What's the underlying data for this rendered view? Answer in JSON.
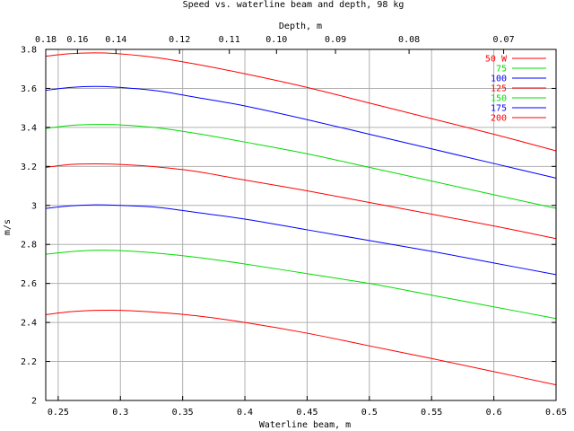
{
  "chart_data": {
    "type": "line",
    "title": "Speed  vs. waterline beam and depth, 98 kg",
    "xlabel": "Waterline beam, m",
    "ylabel": "m/s",
    "x2label": "Depth, m",
    "xlim": [
      0.24,
      0.65
    ],
    "ylim": [
      2.0,
      3.8
    ],
    "xticks": [
      0.25,
      0.3,
      0.35,
      0.4,
      0.45,
      0.5,
      0.55,
      0.6,
      0.65
    ],
    "xtick_labels": [
      "0.25",
      "0.3",
      "0.35",
      "0.4",
      "0.45",
      "0.5",
      "0.55",
      "0.6",
      "0.65"
    ],
    "yticks": [
      2.0,
      2.2,
      2.4,
      2.6,
      2.8,
      3.0,
      3.2,
      3.4,
      3.6,
      3.8
    ],
    "ytick_labels": [
      "2",
      "2.2",
      "2.4",
      "2.6",
      "2.8",
      "3",
      "3.2",
      "3.4",
      "3.6",
      "3.8"
    ],
    "x2ticks": [
      {
        "beam": 0.24,
        "label": "0.18"
      },
      {
        "beam": 0.2655,
        "label": "0.16"
      },
      {
        "beam": 0.2964,
        "label": "0.14"
      },
      {
        "beam": 0.3475,
        "label": "0.12"
      },
      {
        "beam": 0.3875,
        "label": "0.11"
      },
      {
        "beam": 0.4254,
        "label": "0.10"
      },
      {
        "beam": 0.4728,
        "label": "0.09"
      },
      {
        "beam": 0.5319,
        "label": "0.08"
      },
      {
        "beam": 0.6079,
        "label": "0.07"
      }
    ],
    "grid": true,
    "legend_position": "top-right",
    "x": [
      0.24,
      0.26,
      0.28,
      0.3,
      0.33,
      0.36,
      0.4,
      0.45,
      0.5,
      0.55,
      0.6,
      0.65
    ],
    "series": [
      {
        "name": "50 W",
        "color": "#ff0000",
        "values": [
          2.44,
          2.455,
          2.462,
          2.462,
          2.452,
          2.435,
          2.4,
          2.345,
          2.28,
          2.215,
          2.148,
          2.08
        ]
      },
      {
        "name": "75",
        "color": "#00dd00",
        "values": [
          2.75,
          2.763,
          2.77,
          2.768,
          2.755,
          2.735,
          2.7,
          2.65,
          2.6,
          2.54,
          2.48,
          2.42
        ]
      },
      {
        "name": "100",
        "color": "#0000ff",
        "values": [
          2.985,
          2.998,
          3.003,
          3.0,
          2.99,
          2.965,
          2.93,
          2.875,
          2.82,
          2.765,
          2.705,
          2.645
        ]
      },
      {
        "name": "125",
        "color": "#ff0000",
        "values": [
          3.195,
          3.21,
          3.213,
          3.21,
          3.197,
          3.175,
          3.13,
          3.075,
          3.015,
          2.955,
          2.895,
          2.83
        ]
      },
      {
        "name": "150",
        "color": "#00dd00",
        "values": [
          3.395,
          3.41,
          3.415,
          3.413,
          3.398,
          3.37,
          3.325,
          3.265,
          3.195,
          3.125,
          3.055,
          2.985
        ]
      },
      {
        "name": "175",
        "color": "#0000ff",
        "values": [
          3.59,
          3.605,
          3.61,
          3.605,
          3.587,
          3.555,
          3.51,
          3.44,
          3.365,
          3.29,
          3.215,
          3.14
        ]
      },
      {
        "name": "200",
        "color": "#ff0000",
        "values": [
          3.765,
          3.778,
          3.782,
          3.777,
          3.757,
          3.725,
          3.675,
          3.605,
          3.525,
          3.445,
          3.365,
          3.28
        ]
      }
    ]
  }
}
